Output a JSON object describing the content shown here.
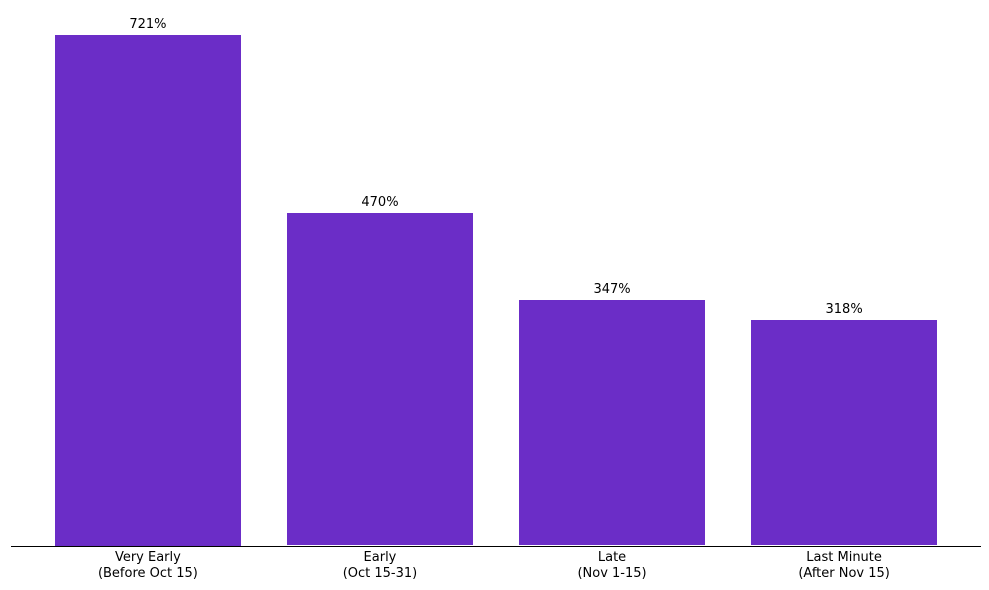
{
  "chart_data": {
    "type": "bar",
    "categories": [
      "Very Early\n(Before Oct 15)",
      "Early\n(Oct 15-31)",
      "Late\n(Nov 1-15)",
      "Last Minute\n(After Nov 15)"
    ],
    "values": [
      721,
      470,
      347,
      318
    ],
    "bar_labels": [
      "721%",
      "470%",
      "347%",
      "318%"
    ],
    "title": "",
    "xlabel": "",
    "ylabel": "",
    "ylim": [
      0,
      770
    ],
    "grid": false,
    "legend_position": "none",
    "bar_color": "#6B2DC7",
    "axis_color": "#000000",
    "label_color": "#000000"
  }
}
